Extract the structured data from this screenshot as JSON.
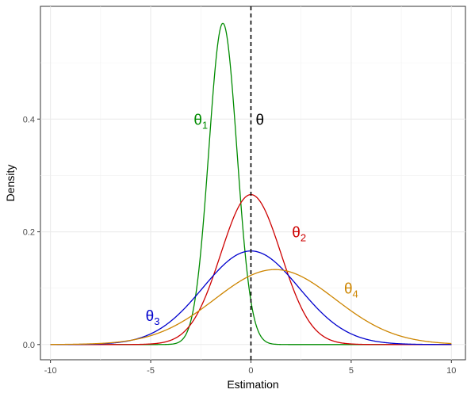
{
  "chart_data": {
    "type": "line",
    "title": "",
    "xlabel": "Estimation",
    "ylabel": "Density",
    "xlim": [
      -10.5,
      10.7
    ],
    "ylim": [
      -0.027,
      0.6
    ],
    "x_ticks": [
      -10,
      -5,
      0,
      5,
      10
    ],
    "x_tick_labels": [
      "-10",
      "-5",
      "0",
      "5",
      "10"
    ],
    "y_ticks": [
      0.0,
      0.2,
      0.4
    ],
    "y_tick_labels": [
      "0.0",
      "0.2",
      "0.4"
    ],
    "grid": true,
    "legend": "none",
    "reference_line": {
      "x": 0,
      "label": "θ",
      "style": "dashed",
      "color": "#000000"
    },
    "series": [
      {
        "name": "θ1",
        "label_main": "θ",
        "label_sub": "1",
        "color": "#008B00",
        "distribution": "normal",
        "mean": -1.4,
        "sd": 0.7,
        "peak": 0.57,
        "label_pos": [
          -2.5,
          0.4
        ]
      },
      {
        "name": "θ2",
        "label_main": "θ",
        "label_sub": "2",
        "color": "#CD0000",
        "distribution": "normal",
        "mean": 0.0,
        "sd": 1.5,
        "peak": 0.266,
        "label_pos": [
          2.4,
          0.2
        ]
      },
      {
        "name": "θ3",
        "label_main": "θ",
        "label_sub": "3",
        "color": "#0000CD",
        "distribution": "normal",
        "mean": 0.0,
        "sd": 2.4,
        "peak": 0.166,
        "label_pos": [
          -4.9,
          0.052
        ]
      },
      {
        "name": "θ4",
        "label_main": "θ",
        "label_sub": "4",
        "color": "#CD8500",
        "distribution": "normal",
        "mean": 1.2,
        "sd": 3.0,
        "peak": 0.133,
        "label_pos": [
          5.0,
          0.1
        ]
      }
    ]
  }
}
